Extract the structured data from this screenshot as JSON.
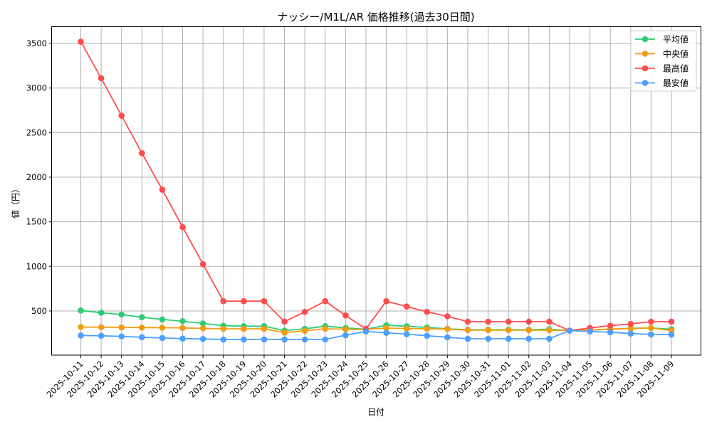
{
  "chart_data": {
    "type": "line",
    "title": "ナッシー/M1L/AR 価格推移(過去30日間)",
    "xlabel": "日付",
    "ylabel": "値（円）",
    "ylim": [
      0,
      3680
    ],
    "yticks": [
      500,
      1000,
      1500,
      2000,
      2500,
      3000,
      3500
    ],
    "grid": true,
    "legend_position": "upper right",
    "categories": [
      "2025-10-11",
      "2025-10-12",
      "2025-10-13",
      "2025-10-14",
      "2025-10-15",
      "2025-10-16",
      "2025-10-17",
      "2025-10-18",
      "2025-10-19",
      "2025-10-20",
      "2025-10-21",
      "2025-10-22",
      "2025-10-23",
      "2025-10-24",
      "2025-10-25",
      "2025-10-26",
      "2025-10-27",
      "2025-10-28",
      "2025-10-29",
      "2025-10-30",
      "2025-10-31",
      "2025-11-01",
      "2025-11-02",
      "2025-11-03",
      "2025-11-04",
      "2025-11-05",
      "2025-11-06",
      "2025-11-07",
      "2025-11-08",
      "2025-11-09"
    ],
    "series": [
      {
        "name": "平均値",
        "color": "#2ecc71",
        "values": [
          505,
          480,
          460,
          430,
          405,
          385,
          360,
          335,
          330,
          330,
          280,
          300,
          330,
          310,
          295,
          340,
          330,
          315,
          300,
          290,
          290,
          290,
          290,
          295,
          280,
          285,
          295,
          305,
          310,
          295
        ]
      },
      {
        "name": "中央値",
        "color": "#f39c12",
        "values": [
          320,
          318,
          316,
          314,
          312,
          310,
          305,
          300,
          300,
          300,
          258,
          278,
          300,
          295,
          293,
          308,
          303,
          300,
          298,
          285,
          285,
          285,
          285,
          285,
          280,
          287,
          298,
          303,
          310,
          280
        ]
      },
      {
        "name": "最高値",
        "color": "#ff4d4d",
        "values": [
          3520,
          3110,
          2690,
          2270,
          1860,
          1440,
          1025,
          610,
          610,
          610,
          380,
          490,
          610,
          450,
          300,
          610,
          550,
          490,
          440,
          380,
          380,
          380,
          380,
          380,
          280,
          310,
          335,
          355,
          380,
          380
        ]
      },
      {
        "name": "最安値",
        "color": "#4d9fff",
        "values": [
          225,
          222,
          215,
          205,
          197,
          190,
          186,
          180,
          180,
          180,
          180,
          180,
          180,
          228,
          270,
          255,
          240,
          222,
          205,
          188,
          188,
          188,
          188,
          188,
          280,
          270,
          261,
          247,
          237,
          235
        ]
      }
    ]
  }
}
